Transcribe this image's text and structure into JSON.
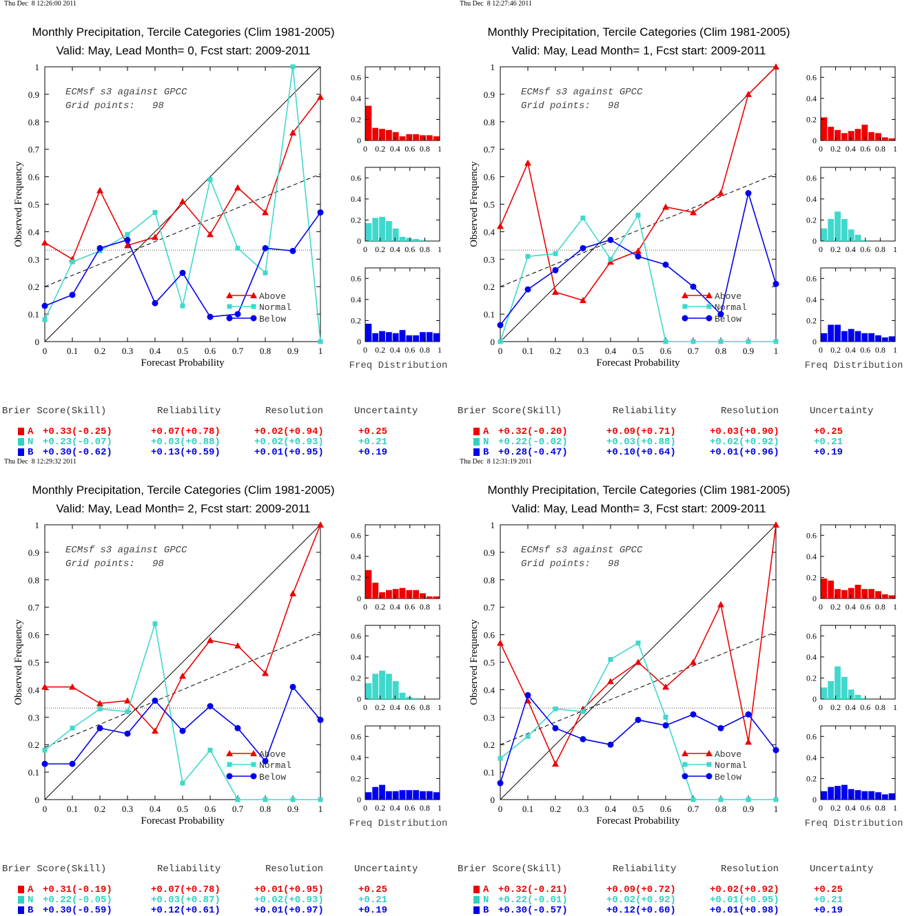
{
  "labels": {
    "ylabel": "Observed Frequency",
    "xlabel": "Forecast Probability",
    "freq_label": "Freq Distribution",
    "legend": [
      "Above",
      "Normal",
      "Below"
    ],
    "stat_headers": [
      "Brier Score(Skill)",
      "Reliability",
      "Resolution",
      "Uncertainty"
    ],
    "cat_letters": [
      "A",
      "N",
      "B"
    ]
  },
  "colors": {
    "above": "#ee0000",
    "normal": "#40d8cc",
    "below": "#0000ee",
    "stat_above": "#ee0000",
    "stat_normal": "#30d0c0",
    "stat_below": "#0000ee"
  },
  "panels": [
    {
      "timestamp": "Thu Dec  8 12:26:00 2011",
      "title1": "Monthly Precipitation, Tercile Categories (Clim 1981-2005)",
      "title2": "Valid: May, Lead Month= 0, Fcst start: 2009-2011",
      "annot1": "ECMsf s3 against GPCC",
      "annot2": "Grid points:   98",
      "stats": [
        [
          "+0.33(-0.25)",
          "+0.07(+0.78)",
          "+0.02(+0.94)",
          "+0.25"
        ],
        [
          "+0.23(-0.07)",
          "+0.03(+0.88)",
          "+0.02(+0.93)",
          "+0.21"
        ],
        [
          "+0.30(-0.62)",
          "+0.13(+0.59)",
          "+0.01(+0.95)",
          "+0.19"
        ]
      ]
    },
    {
      "timestamp": "Thu Dec  8 12:27:46 2011",
      "title1": "Monthly Precipitation, Tercile Categories (Clim 1981-2005)",
      "title2": "Valid: May, Lead Month= 1, Fcst start: 2009-2011",
      "annot1": "ECMsf s3 against GPCC",
      "annot2": "Grid points:   98",
      "stats": [
        [
          "+0.32(-0.20)",
          "+0.09(+0.71)",
          "+0.03(+0.90)",
          "+0.25"
        ],
        [
          "+0.22(-0.02)",
          "+0.03(+0.88)",
          "+0.02(+0.92)",
          "+0.21"
        ],
        [
          "+0.28(-0.47)",
          "+0.10(+0.64)",
          "+0.01(+0.96)",
          "+0.19"
        ]
      ]
    },
    {
      "timestamp": "Thu Dec  8 12:29:32 2011",
      "title1": "Monthly Precipitation, Tercile Categories (Clim 1981-2005)",
      "title2": "Valid: May, Lead Month= 2, Fcst start: 2009-2011",
      "annot1": "ECMsf s3 against GPCC",
      "annot2": "Grid points:   98",
      "stats": [
        [
          "+0.31(-0.19)",
          "+0.07(+0.78)",
          "+0.01(+0.95)",
          "+0.25"
        ],
        [
          "+0.22(-0.05)",
          "+0.03(+0.87)",
          "+0.02(+0.93)",
          "+0.21"
        ],
        [
          "+0.30(-0.59)",
          "+0.12(+0.61)",
          "+0.01(+0.97)",
          "+0.19"
        ]
      ]
    },
    {
      "timestamp": "Thu Dec  8 12:31:19 2011",
      "title1": "Monthly Precipitation, Tercile Categories (Clim 1981-2005)",
      "title2": "Valid: May, Lead Month= 3, Fcst start: 2009-2011",
      "annot1": "ECMsf s3 against GPCC",
      "annot2": "Grid points:   98",
      "stats": [
        [
          "+0.32(-0.21)",
          "+0.09(+0.72)",
          "+0.02(+0.92)",
          "+0.25"
        ],
        [
          "+0.22(-0.01)",
          "+0.02(+0.92)",
          "+0.01(+0.95)",
          "+0.21"
        ],
        [
          "+0.30(-0.57)",
          "+0.12(+0.60)",
          "+0.01(+0.98)",
          "+0.19"
        ]
      ]
    }
  ],
  "chart_data": [
    {
      "type": "line",
      "title": "Monthly Precipitation, Tercile Categories (Clim 1981-2005) / Valid: May, Lead Month= 0, Fcst start: 2009-2011",
      "xlabel": "Forecast Probability",
      "ylabel": "Observed Frequency",
      "xlim": [
        0,
        1
      ],
      "ylim": [
        0,
        1
      ],
      "xticks": [
        "0",
        "0.1",
        "0.2",
        "0.3",
        "0.4",
        "0.5",
        "0.6",
        "0.7",
        "0.8",
        "0.9",
        "1"
      ],
      "yticks": [
        "0",
        "0.1",
        "0.2",
        "0.3",
        "0.4",
        "0.5",
        "0.6",
        "0.7",
        "0.8",
        "0.9",
        "1"
      ],
      "x": [
        0,
        0.1,
        0.2,
        0.3,
        0.4,
        0.5,
        0.6,
        0.7,
        0.8,
        0.9,
        1
      ],
      "series": [
        {
          "name": "Above",
          "values": [
            0.36,
            0.3,
            0.55,
            0.35,
            0.38,
            0.51,
            0.39,
            0.56,
            0.47,
            0.76,
            0.89
          ]
        },
        {
          "name": "Normal",
          "values": [
            0.08,
            0.29,
            0.33,
            0.39,
            0.47,
            0.13,
            0.59,
            0.34,
            0.25,
            1.0,
            0.0
          ]
        },
        {
          "name": "Below",
          "values": [
            0.13,
            0.17,
            0.34,
            0.37,
            0.14,
            0.25,
            0.09,
            0.1,
            0.34,
            0.33,
            0.47
          ]
        }
      ],
      "dashed_fit": [
        [
          0,
          0.2
        ],
        [
          1,
          0.61
        ]
      ],
      "climatology": 0.333,
      "hist_xticks": [
        "0",
        "0.2",
        "0.4",
        "0.6",
        "0.8",
        "1"
      ],
      "hist_yticks": [
        "0",
        "0.2",
        "0.4",
        "0.6"
      ],
      "hist_ylim": [
        0,
        0.7
      ],
      "hist": {
        "Above": [
          0.33,
          0.12,
          0.11,
          0.1,
          0.08,
          0.04,
          0.06,
          0.06,
          0.05,
          0.05,
          0.04
        ],
        "Normal": [
          0.17,
          0.22,
          0.23,
          0.19,
          0.12,
          0.04,
          0.03,
          0.02,
          0.01,
          0.0,
          0.0
        ],
        "Below": [
          0.17,
          0.08,
          0.1,
          0.09,
          0.08,
          0.11,
          0.06,
          0.06,
          0.09,
          0.09,
          0.08
        ]
      }
    },
    {
      "type": "line",
      "title": "Monthly Precipitation, Tercile Categories (Clim 1981-2005) / Valid: May, Lead Month= 1, Fcst start: 2009-2011",
      "xlabel": "Forecast Probability",
      "ylabel": "Observed Frequency",
      "xlim": [
        0,
        1
      ],
      "ylim": [
        0,
        1
      ],
      "xticks": [
        "0",
        "0.1",
        "0.2",
        "0.3",
        "0.4",
        "0.5",
        "0.6",
        "0.7",
        "0.8",
        "0.9",
        "1"
      ],
      "yticks": [
        "0",
        "0.1",
        "0.2",
        "0.3",
        "0.4",
        "0.5",
        "0.6",
        "0.7",
        "0.8",
        "0.9",
        "1"
      ],
      "x": [
        0,
        0.1,
        0.2,
        0.3,
        0.4,
        0.5,
        0.6,
        0.7,
        0.8,
        0.9,
        1
      ],
      "series": [
        {
          "name": "Above",
          "values": [
            0.42,
            0.65,
            0.18,
            0.15,
            0.29,
            0.33,
            0.49,
            0.47,
            0.54,
            0.9,
            1.0
          ]
        },
        {
          "name": "Normal",
          "values": [
            0.0,
            0.31,
            0.32,
            0.45,
            0.3,
            0.46,
            0.0,
            0.0,
            0.0,
            0.0,
            0.0
          ]
        },
        {
          "name": "Below",
          "values": [
            0.06,
            0.19,
            0.26,
            0.34,
            0.37,
            0.31,
            0.28,
            0.2,
            0.1,
            0.54,
            0.21
          ]
        }
      ],
      "dashed_fit": [
        [
          0,
          0.2
        ],
        [
          1,
          0.61
        ]
      ],
      "climatology": 0.333,
      "hist_xticks": [
        "0",
        "0.2",
        "0.4",
        "0.6",
        "0.8",
        "1"
      ],
      "hist_yticks": [
        "0",
        "0.2",
        "0.4",
        "0.6"
      ],
      "hist_ylim": [
        0,
        0.7
      ],
      "hist": {
        "Above": [
          0.22,
          0.13,
          0.1,
          0.07,
          0.09,
          0.11,
          0.15,
          0.08,
          0.07,
          0.03,
          0.02
        ],
        "Normal": [
          0.12,
          0.21,
          0.28,
          0.21,
          0.11,
          0.06,
          0.01,
          0.0,
          0.0,
          0.0,
          0.0
        ],
        "Below": [
          0.08,
          0.16,
          0.16,
          0.1,
          0.12,
          0.1,
          0.08,
          0.08,
          0.06,
          0.04,
          0.05
        ]
      }
    },
    {
      "type": "line",
      "title": "Monthly Precipitation, Tercile Categories (Clim 1981-2005) / Valid: May, Lead Month= 2, Fcst start: 2009-2011",
      "xlabel": "Forecast Probability",
      "ylabel": "Observed Frequency",
      "xlim": [
        0,
        1
      ],
      "ylim": [
        0,
        1
      ],
      "xticks": [
        "0",
        "0.1",
        "0.2",
        "0.3",
        "0.4",
        "0.5",
        "0.6",
        "0.7",
        "0.8",
        "0.9",
        "1"
      ],
      "yticks": [
        "0",
        "0.1",
        "0.2",
        "0.3",
        "0.4",
        "0.5",
        "0.6",
        "0.7",
        "0.8",
        "0.9",
        "1"
      ],
      "x": [
        0,
        0.1,
        0.2,
        0.3,
        0.4,
        0.5,
        0.6,
        0.7,
        0.8,
        0.9,
        1
      ],
      "series": [
        {
          "name": "Above",
          "values": [
            0.41,
            0.41,
            0.35,
            0.36,
            0.25,
            0.45,
            0.58,
            0.56,
            0.46,
            0.75,
            1.0
          ]
        },
        {
          "name": "Normal",
          "values": [
            0.18,
            0.26,
            0.33,
            0.32,
            0.64,
            0.06,
            0.18,
            0.0,
            0.0,
            0.0,
            0.0
          ]
        },
        {
          "name": "Below",
          "values": [
            0.13,
            0.13,
            0.26,
            0.24,
            0.36,
            0.25,
            0.34,
            0.26,
            0.14,
            0.41,
            0.29
          ]
        }
      ],
      "dashed_fit": [
        [
          0,
          0.19
        ],
        [
          1,
          0.61
        ]
      ],
      "climatology": 0.333,
      "hist_xticks": [
        "0",
        "0.2",
        "0.4",
        "0.6",
        "0.8",
        "1"
      ],
      "hist_yticks": [
        "0",
        "0.2",
        "0.4",
        "0.6"
      ],
      "hist_ylim": [
        0,
        0.7
      ],
      "hist": {
        "Above": [
          0.27,
          0.15,
          0.06,
          0.08,
          0.09,
          0.1,
          0.08,
          0.08,
          0.05,
          0.02,
          0.02
        ],
        "Normal": [
          0.15,
          0.24,
          0.27,
          0.24,
          0.17,
          0.06,
          0.02,
          0.01,
          0.0,
          0.0,
          0.0
        ],
        "Below": [
          0.07,
          0.12,
          0.14,
          0.08,
          0.08,
          0.09,
          0.09,
          0.09,
          0.08,
          0.08,
          0.07
        ]
      }
    },
    {
      "type": "line",
      "title": "Monthly Precipitation, Tercile Categories (Clim 1981-2005) / Valid: May, Lead Month= 3, Fcst start: 2009-2011",
      "xlabel": "Forecast Probability",
      "ylabel": "Observed Frequency",
      "xlim": [
        0,
        1
      ],
      "ylim": [
        0,
        1
      ],
      "xticks": [
        "0",
        "0.1",
        "0.2",
        "0.3",
        "0.4",
        "0.5",
        "0.6",
        "0.7",
        "0.8",
        "0.9",
        "1"
      ],
      "yticks": [
        "0",
        "0.1",
        "0.2",
        "0.3",
        "0.4",
        "0.5",
        "0.6",
        "0.7",
        "0.8",
        "0.9",
        "1"
      ],
      "x": [
        0,
        0.1,
        0.2,
        0.3,
        0.4,
        0.5,
        0.6,
        0.7,
        0.8,
        0.9,
        1
      ],
      "series": [
        {
          "name": "Above",
          "values": [
            0.57,
            0.36,
            0.13,
            0.33,
            0.43,
            0.5,
            0.41,
            0.5,
            0.71,
            0.21,
            1.0
          ]
        },
        {
          "name": "Normal",
          "values": [
            0.15,
            0.23,
            0.33,
            0.32,
            0.51,
            0.57,
            0.3,
            0.0,
            0.0,
            0.0,
            0.0
          ]
        },
        {
          "name": "Below",
          "values": [
            0.06,
            0.38,
            0.26,
            0.22,
            0.2,
            0.29,
            0.27,
            0.31,
            0.26,
            0.31,
            0.18
          ]
        }
      ],
      "dashed_fit": [
        [
          0,
          0.2
        ],
        [
          1,
          0.61
        ]
      ],
      "climatology": 0.333,
      "hist_xticks": [
        "0",
        "0.2",
        "0.4",
        "0.6",
        "0.8",
        "1"
      ],
      "hist_yticks": [
        "0",
        "0.2",
        "0.4",
        "0.6"
      ],
      "hist_ylim": [
        0,
        0.7
      ],
      "hist": {
        "Above": [
          0.19,
          0.17,
          0.09,
          0.08,
          0.1,
          0.13,
          0.09,
          0.09,
          0.07,
          0.04,
          0.03
        ],
        "Normal": [
          0.11,
          0.17,
          0.31,
          0.21,
          0.09,
          0.04,
          0.01,
          0.0,
          0.0,
          0.0,
          0.0
        ],
        "Below": [
          0.08,
          0.12,
          0.13,
          0.14,
          0.1,
          0.09,
          0.08,
          0.08,
          0.07,
          0.05,
          0.06
        ]
      }
    }
  ]
}
